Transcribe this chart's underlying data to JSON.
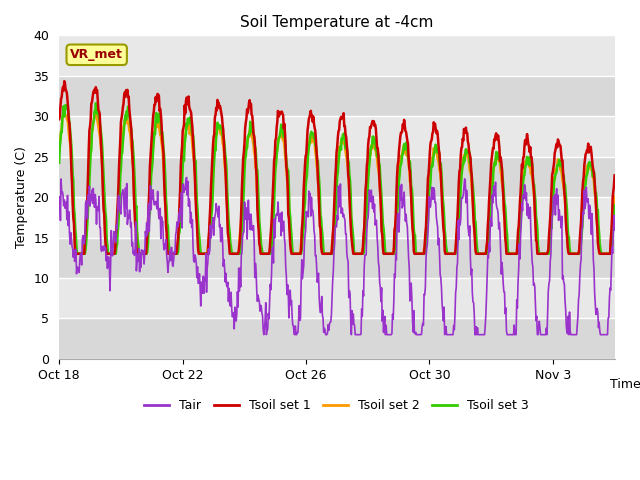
{
  "title": "Soil Temperature at -4cm",
  "xlabel": "Time",
  "ylabel": "Temperature (C)",
  "ylim": [
    0,
    40
  ],
  "yticks": [
    0,
    5,
    10,
    15,
    20,
    25,
    30,
    35,
    40
  ],
  "plot_bg_color": "#e8e8e8",
  "fig_bg_color": "#ffffff",
  "grid_color": "#ffffff",
  "band_colors": [
    "#d8d8d8",
    "#e8e8e8"
  ],
  "line_colors": {
    "Tair": "#9933cc",
    "Tsoil1": "#cc0000",
    "Tsoil2": "#ff9900",
    "Tsoil3": "#33cc00"
  },
  "line_widths": {
    "Tair": 1.2,
    "Tsoil1": 1.8,
    "Tsoil2": 1.8,
    "Tsoil3": 1.8
  },
  "legend_labels": [
    "Tair",
    "Tsoil set 1",
    "Tsoil set 2",
    "Tsoil set 3"
  ],
  "legend_colors": [
    "#9933cc",
    "#cc0000",
    "#ff9900",
    "#33cc00"
  ],
  "annotation_text": "VR_met",
  "annotation_bg": "#ffff99",
  "annotation_border": "#999900",
  "annotation_text_color": "#990000",
  "xtick_labels": [
    "Oct 18",
    "Oct 22",
    "Oct 26",
    "Oct 30",
    "Nov 3"
  ],
  "xtick_days": [
    0,
    4,
    8,
    12,
    16
  ],
  "n_days": 18
}
